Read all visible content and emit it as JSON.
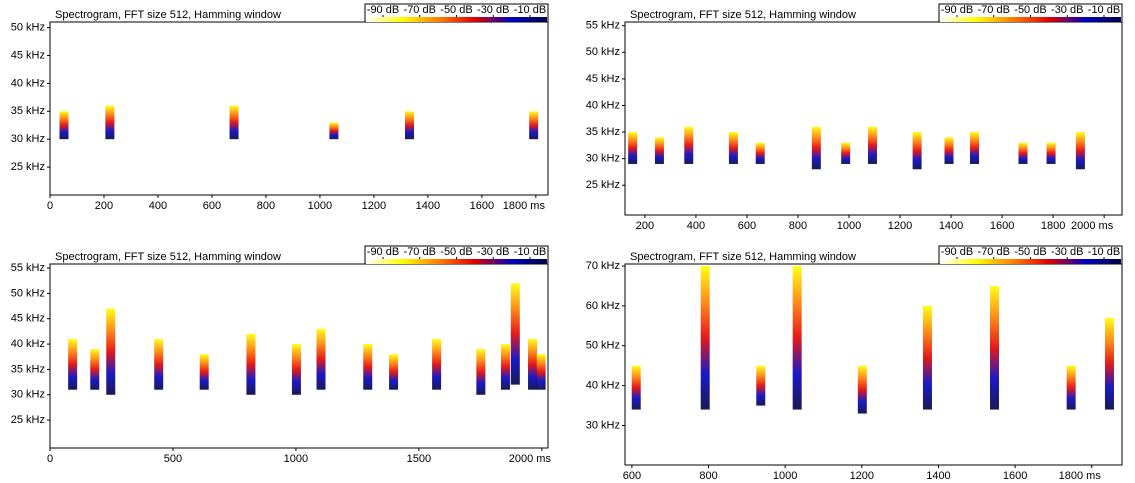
{
  "chart_data": [
    {
      "type": "spectrogram",
      "title": "Spectrogram, FFT size 512, Hamming window",
      "colorbar": {
        "colors": [
          "#ffffff",
          "#ffff00",
          "#ff8000",
          "#e00000",
          "#0000c0",
          "#000040"
        ],
        "ticks": [
          {
            "value": -90,
            "label": "-90 dB"
          },
          {
            "value": -70,
            "label": "-70 dB"
          },
          {
            "value": -50,
            "label": "-50 dB"
          },
          {
            "value": -30,
            "label": "-30 dB"
          },
          {
            "value": -10,
            "label": "-10 dB"
          }
        ]
      },
      "xlim": [
        0,
        1845
      ],
      "ylim": [
        20,
        51
      ],
      "xticks": [
        0,
        200,
        400,
        600,
        800,
        1000,
        1200,
        1400,
        1600,
        {
          "value": 1800,
          "label": "1800 ms"
        }
      ],
      "yticks": [
        {
          "value": 25,
          "label": "25 kHz"
        },
        {
          "value": 30,
          "label": "30 kHz"
        },
        {
          "value": 35,
          "label": "35 kHz"
        },
        {
          "value": 40,
          "label": "40 kHz"
        },
        {
          "value": 45,
          "label": "45 kHz"
        },
        {
          "value": 50,
          "label": "50 kHz"
        }
      ],
      "calls": {
        "time": [
          50,
          220,
          680,
          1050,
          1330,
          1790
        ],
        "low": [
          30,
          30,
          30,
          30,
          30,
          30
        ],
        "high": [
          35,
          36,
          36,
          33,
          35,
          35
        ]
      }
    },
    {
      "type": "spectrogram",
      "title": "Spectrogram, FFT size 512, Hamming window",
      "colorbar": {
        "colors": [
          "#ffffff",
          "#ffff00",
          "#ff8000",
          "#e00000",
          "#0000c0",
          "#000040"
        ],
        "ticks": [
          {
            "value": -90,
            "label": "-90 dB"
          },
          {
            "value": -70,
            "label": "-70 dB"
          },
          {
            "value": -50,
            "label": "-50 dB"
          },
          {
            "value": -30,
            "label": "-30 dB"
          },
          {
            "value": -10,
            "label": "-10 dB"
          }
        ]
      },
      "xlim": [
        122,
        2070
      ],
      "ylim": [
        19.4,
        55.7
      ],
      "xticks": [
        200,
        400,
        600,
        800,
        1000,
        1200,
        1400,
        1600,
        1800,
        {
          "value": 2000,
          "label": "2000 ms"
        }
      ],
      "yticks": [
        {
          "value": 25,
          "label": "25 kHz"
        },
        {
          "value": 30,
          "label": "30 kHz"
        },
        {
          "value": 35,
          "label": "35 kHz"
        },
        {
          "value": 40,
          "label": "40 kHz"
        },
        {
          "value": 45,
          "label": "45 kHz"
        },
        {
          "value": 50,
          "label": "50 kHz"
        },
        {
          "value": 55,
          "label": "55 kHz"
        }
      ],
      "calls": {
        "time": [
          150,
          255,
          370,
          545,
          650,
          870,
          985,
          1090,
          1265,
          1390,
          1490,
          1680,
          1790,
          1905
        ],
        "low": [
          29,
          29,
          29,
          29,
          29,
          28,
          29,
          29,
          28,
          29,
          29,
          29,
          29,
          28
        ],
        "high": [
          35,
          34,
          36,
          35,
          33,
          36,
          33,
          36,
          35,
          34,
          35,
          33,
          33,
          35
        ]
      }
    },
    {
      "type": "spectrogram",
      "title": "Spectrogram, FFT size 512, Hamming window",
      "colorbar": {
        "colors": [
          "#ffffff",
          "#ffff00",
          "#ff8000",
          "#e00000",
          "#0000c0",
          "#000040"
        ],
        "ticks": [
          {
            "value": -90,
            "label": "-90 dB"
          },
          {
            "value": -70,
            "label": "-70 dB"
          },
          {
            "value": -50,
            "label": "-50 dB"
          },
          {
            "value": -30,
            "label": "-30 dB"
          },
          {
            "value": -10,
            "label": "-10 dB"
          }
        ]
      },
      "xlim": [
        0,
        2025
      ],
      "ylim": [
        19.5,
        55.8
      ],
      "xticks": [
        0,
        500,
        1000,
        1500,
        {
          "value": 2000,
          "label": "2000 ms"
        }
      ],
      "yticks": [
        {
          "value": 25,
          "label": "25 kHz"
        },
        {
          "value": 30,
          "label": "30 kHz"
        },
        {
          "value": 35,
          "label": "35 kHz"
        },
        {
          "value": 40,
          "label": "40 kHz"
        },
        {
          "value": 45,
          "label": "45 kHz"
        },
        {
          "value": 50,
          "label": "50 kHz"
        },
        {
          "value": 55,
          "label": "55 kHz"
        }
      ],
      "calls": {
        "time": [
          90,
          180,
          245,
          440,
          625,
          815,
          1000,
          1100,
          1290,
          1395,
          1570,
          1750,
          1850,
          1890,
          1960,
          1995
        ],
        "low": [
          31,
          31,
          30,
          31,
          31,
          30,
          30,
          31,
          31,
          31,
          31,
          30,
          31,
          32,
          31,
          31
        ],
        "high": [
          41,
          39,
          47,
          41,
          38,
          42,
          40,
          43,
          40,
          38,
          41,
          39,
          40,
          52,
          41,
          38
        ]
      }
    },
    {
      "type": "spectrogram",
      "title": "Spectrogram, FFT size 512, Hamming window",
      "colorbar": {
        "colors": [
          "#ffffff",
          "#ffff00",
          "#ff8000",
          "#e00000",
          "#0000c0",
          "#000040"
        ],
        "ticks": [
          {
            "value": -90,
            "label": "-90 dB"
          },
          {
            "value": -70,
            "label": "-70 dB"
          },
          {
            "value": -50,
            "label": "-50 dB"
          },
          {
            "value": -30,
            "label": "-30 dB"
          },
          {
            "value": -10,
            "label": "-10 dB"
          }
        ]
      },
      "xlim": [
        582,
        1879
      ],
      "ylim": [
        20.1,
        70.5
      ],
      "xticks": [
        600,
        800,
        1000,
        1200,
        1400,
        1600,
        {
          "value": 1800,
          "label": "1800 ms"
        }
      ],
      "yticks": [
        {
          "value": 30,
          "label": "30 kHz"
        },
        {
          "value": 40,
          "label": "40 kHz"
        },
        {
          "value": 50,
          "label": "50 kHz"
        },
        {
          "value": 60,
          "label": "60 kHz"
        },
        {
          "value": 70,
          "label": "70 kHz"
        }
      ],
      "calls": {
        "time": [
          610,
          790,
          935,
          1030,
          1200,
          1370,
          1545,
          1745,
          1845
        ],
        "low": [
          34,
          34,
          35,
          34,
          33,
          34,
          34,
          34,
          34
        ],
        "high": [
          45,
          70,
          45,
          70,
          45,
          60,
          65,
          45,
          57
        ]
      }
    }
  ]
}
